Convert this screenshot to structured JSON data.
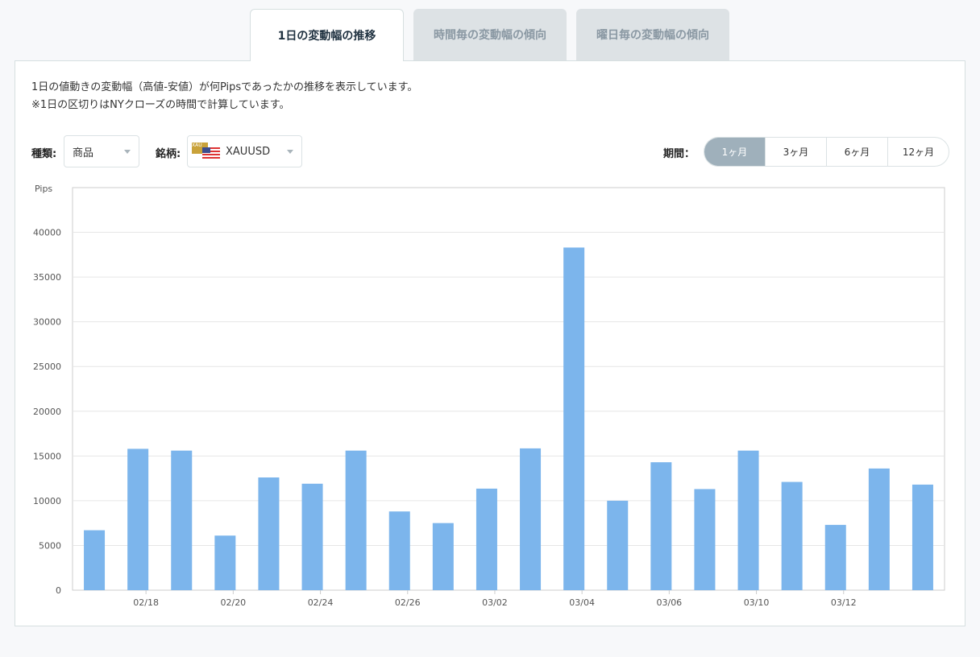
{
  "tabs": [
    {
      "label": "1日の変動幅の推移",
      "active": true
    },
    {
      "label": "時間毎の変動幅の傾向",
      "active": false
    },
    {
      "label": "曜日毎の変動幅の傾向",
      "active": false
    }
  ],
  "description": {
    "line1": "1日の値動きの変動幅（高値-安値）が何Pipsであったかの推移を表示しています。",
    "line2": "※1日の区切りはNYクローズの時間で計算しています。"
  },
  "filters": {
    "type_label": "種類:",
    "type_value": "商品",
    "symbol_label": "銘柄:",
    "symbol_value": "XAUUSD",
    "symbol_icon": "xau-usd-flag-icon",
    "period_label": "期間：",
    "periods": [
      {
        "label": "1ヶ月",
        "active": true
      },
      {
        "label": "3ヶ月",
        "active": false
      },
      {
        "label": "6ヶ月",
        "active": false
      },
      {
        "label": "12ヶ月",
        "active": false
      }
    ]
  },
  "colors": {
    "bar": "#7cb5ec",
    "active_period": "#9fb0bb"
  },
  "chart_data": {
    "type": "bar",
    "ylabel": "Pips",
    "ylim": [
      0,
      45000
    ],
    "yticks": [
      0,
      5000,
      10000,
      15000,
      20000,
      25000,
      30000,
      35000,
      40000
    ],
    "xtick_labels": [
      "02/18",
      "02/20",
      "02/24",
      "02/26",
      "03/02",
      "03/04",
      "03/06",
      "03/10",
      "03/12"
    ],
    "values": [
      6700,
      15800,
      15600,
      6100,
      12600,
      11900,
      15600,
      8800,
      7500,
      11350,
      15850,
      38300,
      10000,
      14300,
      11300,
      15600,
      12100,
      7300,
      13600,
      11800
    ],
    "grid": true
  }
}
